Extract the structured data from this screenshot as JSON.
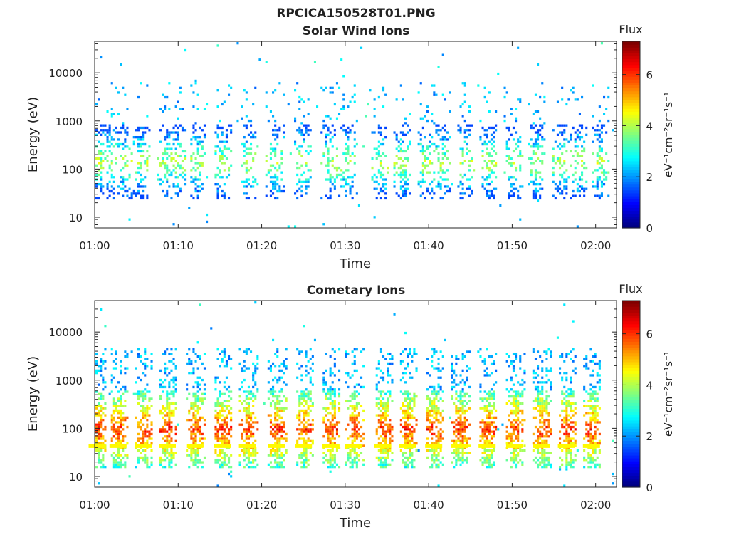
{
  "figure": {
    "filename": "RPCICA150528T01.PNG"
  },
  "chart_data": [
    {
      "type": "heatmap",
      "title": "Solar Wind Ions",
      "xlabel": "Time",
      "ylabel": "Energy (eV)",
      "xticks": [
        "01:00",
        "01:10",
        "01:20",
        "01:30",
        "01:40",
        "01:50",
        "02:00"
      ],
      "yticks": [
        "10",
        "100",
        "1000",
        "10000"
      ],
      "ylim": [
        6,
        45000
      ],
      "yscale": "log",
      "colorbar": {
        "title": "Flux",
        "label": "eV⁻¹cm⁻²sr⁻¹s⁻¹",
        "range": [
          0,
          7.3
        ],
        "ticks": [
          "0",
          "2",
          "4",
          "6"
        ],
        "colormap": "jet"
      },
      "bursts_minutes": [
        0.5,
        1.8,
        3.5,
        5.5,
        8.5,
        9.8,
        12.3,
        15.2,
        18.4,
        21.5,
        24.8,
        28.0,
        30.2,
        34.0,
        36.6,
        39.6,
        41.5,
        44.3,
        47.0,
        50.0,
        52.8,
        55.8,
        57.8,
        60.5
      ],
      "core_energy_range_eV": [
        30,
        700
      ],
      "peak_flux": 4.5
    },
    {
      "type": "heatmap",
      "title": "Cometary Ions",
      "xlabel": "Time",
      "ylabel": "Energy (eV)",
      "xticks": [
        "01:00",
        "01:10",
        "01:20",
        "01:30",
        "01:40",
        "01:50",
        "02:00"
      ],
      "yticks": [
        "10",
        "100",
        "1000",
        "10000"
      ],
      "ylim": [
        6,
        45000
      ],
      "yscale": "log",
      "colorbar": {
        "title": "Flux",
        "label": "eV⁻¹cm⁻²sr⁻¹s⁻¹",
        "range": [
          0,
          7.3
        ],
        "ticks": [
          "0",
          "2",
          "4",
          "6"
        ],
        "colormap": "jet"
      },
      "bursts_minutes": [
        0.3,
        2.8,
        5.8,
        8.7,
        12.0,
        15.3,
        18.3,
        21.8,
        25.0,
        28.3,
        31.0,
        34.5,
        37.5,
        40.6,
        43.7,
        47.0,
        50.3,
        53.5,
        56.5,
        59.5
      ],
      "core_energy_range_eV": [
        20,
        500
      ],
      "peak_flux": 6.0
    }
  ]
}
